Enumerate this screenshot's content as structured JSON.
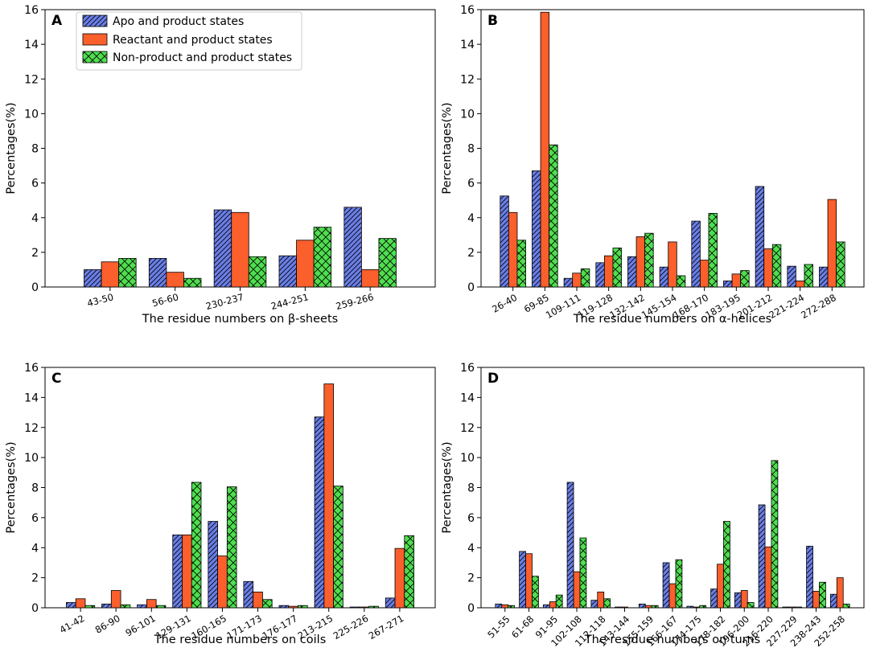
{
  "series_names": [
    "Apo and product states",
    "Reactant and product states",
    "Non-product and product states"
  ],
  "colors": {
    "apo": "#6a7ee6",
    "reactant": "#fb5f2c",
    "nonproduct": "#4fde4f"
  },
  "chart_data": [
    {
      "type": "bar",
      "panel_label": "A",
      "xlabel": "The residue numbers on β-sheets",
      "ylabel": "Percentages(%)",
      "ylim": [
        0,
        16
      ],
      "yticks": [
        "0",
        "2",
        "4",
        "6",
        "8",
        "10",
        "12",
        "14",
        "16"
      ],
      "legend": "top-left",
      "categories": [
        "43-50",
        "56-60",
        "230-237",
        "244-251",
        "259-266"
      ],
      "series": [
        {
          "name": "Apo and product states",
          "values": [
            1.0,
            1.65,
            4.45,
            1.8,
            4.6
          ]
        },
        {
          "name": "Reactant and product states",
          "values": [
            1.45,
            0.85,
            4.3,
            2.7,
            1.0
          ]
        },
        {
          "name": "Non-product and product states",
          "values": [
            1.65,
            0.5,
            1.75,
            3.45,
            2.8
          ]
        }
      ]
    },
    {
      "type": "bar",
      "panel_label": "B",
      "xlabel": "The residue numbers on α-helices",
      "ylabel": "Percentages(%)",
      "ylim": [
        0,
        16
      ],
      "yticks": [
        "0",
        "2",
        "4",
        "6",
        "8",
        "10",
        "12",
        "14",
        "16"
      ],
      "categories": [
        "26-40",
        "69-85",
        "109-111",
        "119-128",
        "132-142",
        "145-154",
        "168-170",
        "183-195",
        "201-212",
        "221-224",
        "272-288"
      ],
      "series": [
        {
          "name": "Apo and product states",
          "values": [
            5.25,
            6.7,
            0.5,
            1.4,
            1.75,
            1.15,
            3.8,
            0.35,
            5.8,
            1.2,
            1.15
          ]
        },
        {
          "name": "Reactant and product states",
          "values": [
            4.3,
            15.85,
            0.8,
            1.8,
            2.9,
            2.6,
            1.55,
            0.75,
            2.2,
            0.35,
            5.05
          ]
        },
        {
          "name": "Non-product and product states",
          "values": [
            2.7,
            8.2,
            1.05,
            2.25,
            3.1,
            0.65,
            4.25,
            0.95,
            2.45,
            1.3,
            2.6
          ]
        }
      ]
    },
    {
      "type": "bar",
      "panel_label": "C",
      "xlabel": "The residue numbers on coils",
      "ylabel": "Percentages(%)",
      "ylim": [
        0,
        16
      ],
      "yticks": [
        "0",
        "2",
        "4",
        "6",
        "8",
        "10",
        "12",
        "14",
        "16"
      ],
      "categories": [
        "41-42",
        "86-90",
        "96-101",
        "129-131",
        "160-165",
        "171-173",
        "176-177",
        "213-215",
        "225-226",
        "267-271"
      ],
      "series": [
        {
          "name": "Apo and product states",
          "values": [
            0.35,
            0.25,
            0.2,
            4.85,
            5.75,
            1.75,
            0.15,
            12.7,
            0.05,
            0.65
          ]
        },
        {
          "name": "Reactant and product states",
          "values": [
            0.6,
            1.15,
            0.55,
            4.85,
            3.45,
            1.05,
            0.1,
            14.9,
            0.05,
            3.95
          ]
        },
        {
          "name": "Non-product and product states",
          "values": [
            0.15,
            0.2,
            0.15,
            8.35,
            8.05,
            0.55,
            0.15,
            8.1,
            0.1,
            4.8
          ]
        }
      ]
    },
    {
      "type": "bar",
      "panel_label": "D",
      "xlabel": "The residue numbers on turns",
      "ylabel": "Percentages(%)",
      "ylim": [
        0,
        16
      ],
      "yticks": [
        "0",
        "2",
        "4",
        "6",
        "8",
        "10",
        "12",
        "14",
        "16"
      ],
      "categories": [
        "51-55",
        "61-68",
        "91-95",
        "102-108",
        "112-118",
        "143-144",
        "155-159",
        "166-167",
        "174-175",
        "178-182",
        "196-200",
        "216-220",
        "227-229",
        "238-243",
        "252-258"
      ],
      "series": [
        {
          "name": "Apo and product states",
          "values": [
            0.25,
            3.75,
            0.2,
            8.35,
            0.5,
            0.05,
            0.25,
            3.0,
            0.1,
            1.25,
            1.0,
            6.85,
            0.05,
            4.1,
            0.9
          ]
        },
        {
          "name": "Reactant and product states",
          "values": [
            0.2,
            3.6,
            0.4,
            2.4,
            1.05,
            0.05,
            0.15,
            1.6,
            0.05,
            2.9,
            1.15,
            4.05,
            0.05,
            1.1,
            2.0
          ]
        },
        {
          "name": "Non-product and product states",
          "values": [
            0.15,
            2.1,
            0.85,
            4.65,
            0.6,
            0.0,
            0.15,
            3.2,
            0.15,
            5.75,
            0.35,
            9.8,
            0.05,
            1.7,
            0.25
          ]
        }
      ]
    }
  ]
}
